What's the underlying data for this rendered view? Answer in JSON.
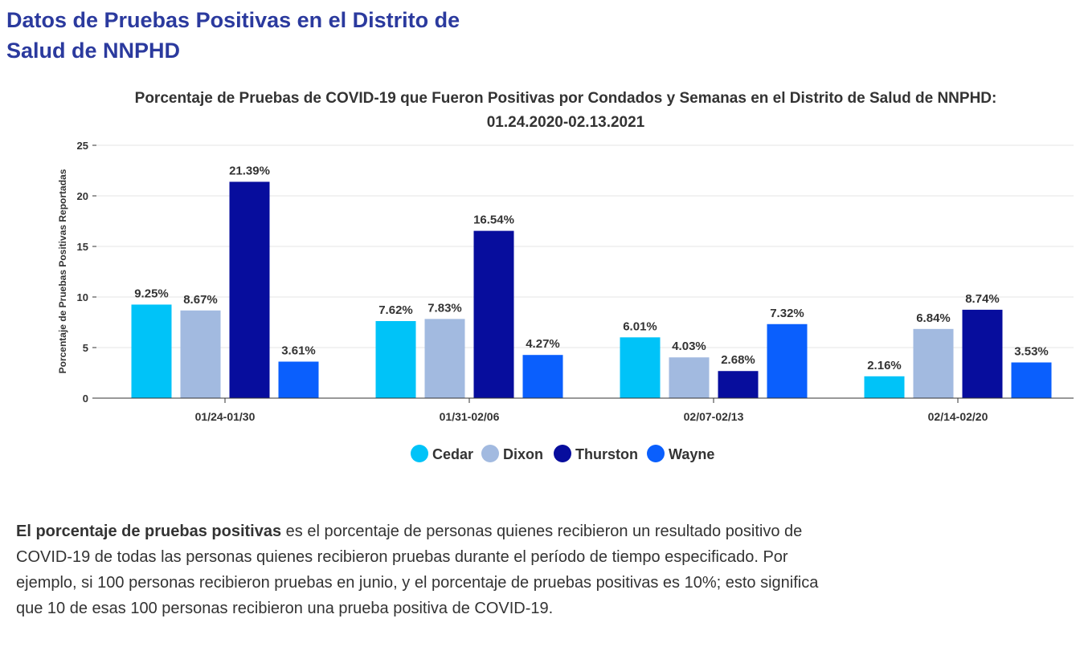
{
  "page": {
    "title": "Datos de Pruebas Positivas en el Distrito de Salud de NNPHD",
    "description_bold": "El porcentaje de pruebas positivas",
    "description_rest": " es el porcentaje de personas quienes recibieron un resultado positivo de COVID-19 de todas las personas quienes recibieron pruebas durante el período de tiempo especificado. Por ejemplo, si 100 personas recibieron pruebas en junio, y el porcentaje de pruebas positivas es 10%; esto significa que 10 de esas 100 personas recibieron una prueba positiva de COVID-19."
  },
  "chart_data": {
    "type": "bar",
    "title_line1": "Porcentaje de Pruebas de COVID-19 que Fueron Positivas por Condados y Semanas en el Distrito de Salud de NNPHD:",
    "title_line2": "01.24.2020-02.13.2021",
    "ylabel": "Porcentaje de Pruebas Positivas Reportadas",
    "ylim": [
      0,
      25
    ],
    "yticks": [
      0,
      5,
      10,
      15,
      20,
      25
    ],
    "grid": true,
    "legend_position": "bottom",
    "categories": [
      "01/24-01/30",
      "01/31-02/06",
      "02/07-02/13",
      "02/14-02/20"
    ],
    "series": [
      {
        "name": "Cedar",
        "color": "#00c3f8",
        "values": [
          9.25,
          7.62,
          6.01,
          2.16
        ],
        "labels": [
          "9.25%",
          "7.62%",
          "6.01%",
          "2.16%"
        ]
      },
      {
        "name": "Dixon",
        "color": "#a2bae0",
        "values": [
          8.67,
          7.83,
          4.03,
          6.84
        ],
        "labels": [
          "8.67%",
          "7.83%",
          "4.03%",
          "6.84%"
        ]
      },
      {
        "name": "Thurston",
        "color": "#070d9d",
        "values": [
          21.39,
          16.54,
          2.68,
          8.74
        ],
        "labels": [
          "21.39%",
          "16.54%",
          "2.68%",
          "8.74%"
        ]
      },
      {
        "name": "Wayne",
        "color": "#0a5ffd",
        "values": [
          3.61,
          4.27,
          7.32,
          3.53
        ],
        "labels": [
          "3.61%",
          "4.27%",
          "7.32%",
          "3.53%"
        ]
      }
    ]
  }
}
